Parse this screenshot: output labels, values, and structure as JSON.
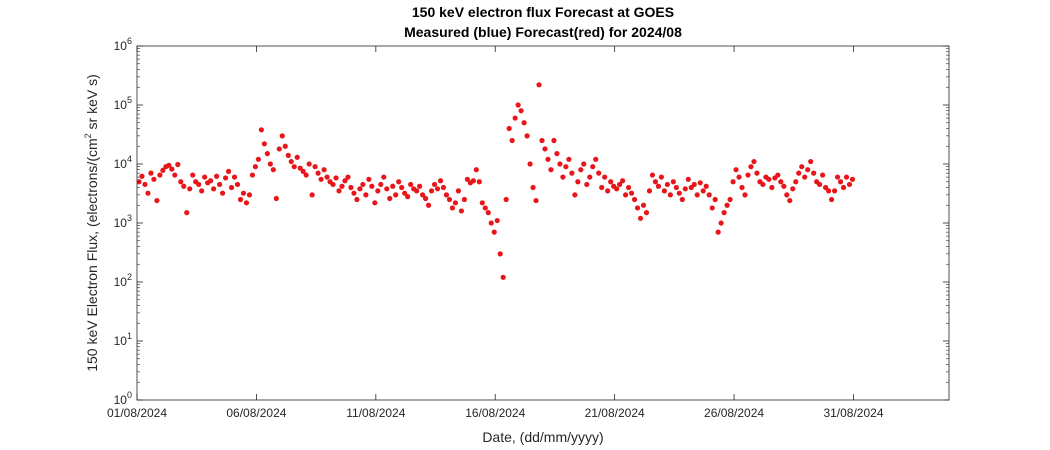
{
  "chart_data": {
    "type": "scatter",
    "title": "150 keV electron flux Forecast at GOES",
    "subtitle": "Measured (blue) Forecast(red) for 2024/08",
    "xlabel": "Date, (dd/mm/yyyy)",
    "ylabel": {
      "before": "150 keV Electron Flux, (electrons/(cm",
      "sup": "2",
      "after": " sr keV s)"
    },
    "y_scale": "log",
    "ylim": [
      1,
      1000000
    ],
    "y_tick_values": [
      1,
      10,
      100,
      1000,
      10000,
      100000,
      1000000
    ],
    "y_tick_labels": [
      {
        "base": "10",
        "exp": "0"
      },
      {
        "base": "10",
        "exp": "1"
      },
      {
        "base": "10",
        "exp": "2"
      },
      {
        "base": "10",
        "exp": "3"
      },
      {
        "base": "10",
        "exp": "4"
      },
      {
        "base": "10",
        "exp": "5"
      },
      {
        "base": "10",
        "exp": "6"
      }
    ],
    "xlim": [
      "2024-08-01",
      "2024-09-04"
    ],
    "x_ticks": [
      {
        "date": "2024-08-01",
        "label": "01/08/2024"
      },
      {
        "date": "2024-08-06",
        "label": "06/08/2024"
      },
      {
        "date": "2024-08-11",
        "label": "11/08/2024"
      },
      {
        "date": "2024-08-16",
        "label": "16/08/2024"
      },
      {
        "date": "2024-08-21",
        "label": "21/08/2024"
      },
      {
        "date": "2024-08-26",
        "label": "26/08/2024"
      },
      {
        "date": "2024-08-31",
        "label": "31/08/2024"
      }
    ],
    "grid": false,
    "series": [
      {
        "color": "#e8161a",
        "points": [
          [
            "2024-08-01 02:00",
            5000
          ],
          [
            "2024-08-01 05:00",
            6200
          ],
          [
            "2024-08-01 08:00",
            4500
          ],
          [
            "2024-08-01 11:00",
            3200
          ],
          [
            "2024-08-01 14:00",
            7000
          ],
          [
            "2024-08-01 17:00",
            5500
          ],
          [
            "2024-08-01 20:00",
            2400
          ],
          [
            "2024-08-01 23:00",
            6500
          ],
          [
            "2024-08-02 02:00",
            7800
          ],
          [
            "2024-08-02 05:00",
            9000
          ],
          [
            "2024-08-02 08:00",
            9500
          ],
          [
            "2024-08-02 11:00",
            8200
          ],
          [
            "2024-08-02 14:00",
            6500
          ],
          [
            "2024-08-02 17:00",
            9800
          ],
          [
            "2024-08-02 20:00",
            5000
          ],
          [
            "2024-08-02 23:00",
            4200
          ],
          [
            "2024-08-03 02:00",
            1500
          ],
          [
            "2024-08-03 05:00",
            3800
          ],
          [
            "2024-08-03 08:00",
            6500
          ],
          [
            "2024-08-03 11:00",
            5000
          ],
          [
            "2024-08-03 14:00",
            4500
          ],
          [
            "2024-08-03 17:00",
            3500
          ],
          [
            "2024-08-03 20:00",
            6000
          ],
          [
            "2024-08-03 23:00",
            4800
          ],
          [
            "2024-08-04 02:00",
            5200
          ],
          [
            "2024-08-04 05:00",
            3800
          ],
          [
            "2024-08-04 08:00",
            6200
          ],
          [
            "2024-08-04 11:00",
            4500
          ],
          [
            "2024-08-04 14:00",
            3200
          ],
          [
            "2024-08-04 17:00",
            5800
          ],
          [
            "2024-08-04 20:00",
            7500
          ],
          [
            "2024-08-04 23:00",
            4000
          ],
          [
            "2024-08-05 02:00",
            6000
          ],
          [
            "2024-08-05 05:00",
            4500
          ],
          [
            "2024-08-05 08:00",
            2500
          ],
          [
            "2024-08-05 11:00",
            3200
          ],
          [
            "2024-08-05 14:00",
            2200
          ],
          [
            "2024-08-05 17:00",
            3000
          ],
          [
            "2024-08-05 20:00",
            6500
          ],
          [
            "2024-08-05 23:00",
            9000
          ],
          [
            "2024-08-06 02:00",
            12000
          ],
          [
            "2024-08-06 05:00",
            38000
          ],
          [
            "2024-08-06 08:00",
            22000
          ],
          [
            "2024-08-06 11:00",
            15000
          ],
          [
            "2024-08-06 14:00",
            10000
          ],
          [
            "2024-08-06 17:00",
            8000
          ],
          [
            "2024-08-06 20:00",
            2600
          ],
          [
            "2024-08-06 23:00",
            18000
          ],
          [
            "2024-08-07 02:00",
            30000
          ],
          [
            "2024-08-07 05:00",
            20000
          ],
          [
            "2024-08-07 08:00",
            14000
          ],
          [
            "2024-08-07 11:00",
            11000
          ],
          [
            "2024-08-07 14:00",
            9000
          ],
          [
            "2024-08-07 17:00",
            13000
          ],
          [
            "2024-08-07 20:00",
            8500
          ],
          [
            "2024-08-07 23:00",
            7500
          ],
          [
            "2024-08-08 02:00",
            6500
          ],
          [
            "2024-08-08 05:00",
            10000
          ],
          [
            "2024-08-08 08:00",
            3000
          ],
          [
            "2024-08-08 11:00",
            9000
          ],
          [
            "2024-08-08 14:00",
            7000
          ],
          [
            "2024-08-08 17:00",
            5500
          ],
          [
            "2024-08-08 20:00",
            8000
          ],
          [
            "2024-08-08 23:00",
            6000
          ],
          [
            "2024-08-09 02:00",
            5000
          ],
          [
            "2024-08-09 05:00",
            4500
          ],
          [
            "2024-08-09 08:00",
            5800
          ],
          [
            "2024-08-09 11:00",
            3500
          ],
          [
            "2024-08-09 14:00",
            4200
          ],
          [
            "2024-08-09 17:00",
            5200
          ],
          [
            "2024-08-09 20:00",
            6000
          ],
          [
            "2024-08-09 23:00",
            4000
          ],
          [
            "2024-08-10 02:00",
            3200
          ],
          [
            "2024-08-10 05:00",
            2500
          ],
          [
            "2024-08-10 08:00",
            3800
          ],
          [
            "2024-08-10 11:00",
            4500
          ],
          [
            "2024-08-10 14:00",
            3000
          ],
          [
            "2024-08-10 17:00",
            5500
          ],
          [
            "2024-08-10 20:00",
            4200
          ],
          [
            "2024-08-10 23:00",
            2200
          ],
          [
            "2024-08-11 02:00",
            3500
          ],
          [
            "2024-08-11 05:00",
            4500
          ],
          [
            "2024-08-11 08:00",
            6000
          ],
          [
            "2024-08-11 11:00",
            3800
          ],
          [
            "2024-08-11 14:00",
            2600
          ],
          [
            "2024-08-11 17:00",
            4200
          ],
          [
            "2024-08-11 20:00",
            3000
          ],
          [
            "2024-08-11 23:00",
            5000
          ],
          [
            "2024-08-12 02:00",
            4000
          ],
          [
            "2024-08-12 05:00",
            3200
          ],
          [
            "2024-08-12 08:00",
            2800
          ],
          [
            "2024-08-12 11:00",
            4500
          ],
          [
            "2024-08-12 14:00",
            3800
          ],
          [
            "2024-08-12 17:00",
            3500
          ],
          [
            "2024-08-12 20:00",
            4200
          ],
          [
            "2024-08-12 23:00",
            3000
          ],
          [
            "2024-08-13 02:00",
            2600
          ],
          [
            "2024-08-13 05:00",
            2000
          ],
          [
            "2024-08-13 08:00",
            3500
          ],
          [
            "2024-08-13 11:00",
            4500
          ],
          [
            "2024-08-13 14:00",
            3800
          ],
          [
            "2024-08-13 17:00",
            5200
          ],
          [
            "2024-08-13 20:00",
            4000
          ],
          [
            "2024-08-13 23:00",
            3000
          ],
          [
            "2024-08-14 02:00",
            2500
          ],
          [
            "2024-08-14 05:00",
            1800
          ],
          [
            "2024-08-14 08:00",
            2200
          ],
          [
            "2024-08-14 11:00",
            3500
          ],
          [
            "2024-08-14 14:00",
            1600
          ],
          [
            "2024-08-14 17:00",
            2500
          ],
          [
            "2024-08-14 20:00",
            5500
          ],
          [
            "2024-08-14 23:00",
            4800
          ],
          [
            "2024-08-15 02:00",
            5200
          ],
          [
            "2024-08-15 05:00",
            8000
          ],
          [
            "2024-08-15 08:00",
            5000
          ],
          [
            "2024-08-15 11:00",
            2200
          ],
          [
            "2024-08-15 14:00",
            1800
          ],
          [
            "2024-08-15 17:00",
            1500
          ],
          [
            "2024-08-15 20:00",
            1000
          ],
          [
            "2024-08-15 23:00",
            700
          ],
          [
            "2024-08-16 02:00",
            1100
          ],
          [
            "2024-08-16 05:00",
            300
          ],
          [
            "2024-08-16 08:00",
            120
          ],
          [
            "2024-08-16 11:00",
            2500
          ],
          [
            "2024-08-16 14:00",
            40000
          ],
          [
            "2024-08-16 17:00",
            25000
          ],
          [
            "2024-08-16 20:00",
            60000
          ],
          [
            "2024-08-16 23:00",
            100000
          ],
          [
            "2024-08-17 02:00",
            80000
          ],
          [
            "2024-08-17 05:00",
            50000
          ],
          [
            "2024-08-17 08:00",
            30000
          ],
          [
            "2024-08-17 11:00",
            10000
          ],
          [
            "2024-08-17 14:00",
            4000
          ],
          [
            "2024-08-17 17:00",
            2400
          ],
          [
            "2024-08-17 20:00",
            220000
          ],
          [
            "2024-08-17 23:00",
            25000
          ],
          [
            "2024-08-18 02:00",
            18000
          ],
          [
            "2024-08-18 05:00",
            12000
          ],
          [
            "2024-08-18 08:00",
            8000
          ],
          [
            "2024-08-18 11:00",
            25000
          ],
          [
            "2024-08-18 14:00",
            15000
          ],
          [
            "2024-08-18 17:00",
            10000
          ],
          [
            "2024-08-18 20:00",
            6000
          ],
          [
            "2024-08-18 23:00",
            9000
          ],
          [
            "2024-08-19 02:00",
            12000
          ],
          [
            "2024-08-19 05:00",
            7000
          ],
          [
            "2024-08-19 08:00",
            3000
          ],
          [
            "2024-08-19 11:00",
            5000
          ],
          [
            "2024-08-19 14:00",
            8000
          ],
          [
            "2024-08-19 17:00",
            10000
          ],
          [
            "2024-08-19 20:00",
            4500
          ],
          [
            "2024-08-19 23:00",
            6000
          ],
          [
            "2024-08-20 02:00",
            9000
          ],
          [
            "2024-08-20 05:00",
            12000
          ],
          [
            "2024-08-20 08:00",
            7000
          ],
          [
            "2024-08-20 11:00",
            4000
          ],
          [
            "2024-08-20 14:00",
            6000
          ],
          [
            "2024-08-20 17:00",
            3500
          ],
          [
            "2024-08-20 20:00",
            5000
          ],
          [
            "2024-08-20 23:00",
            4200
          ],
          [
            "2024-08-21 02:00",
            3800
          ],
          [
            "2024-08-21 05:00",
            4500
          ],
          [
            "2024-08-21 08:00",
            5200
          ],
          [
            "2024-08-21 11:00",
            3000
          ],
          [
            "2024-08-21 14:00",
            4000
          ],
          [
            "2024-08-21 17:00",
            3200
          ],
          [
            "2024-08-21 20:00",
            2500
          ],
          [
            "2024-08-21 23:00",
            1800
          ],
          [
            "2024-08-22 02:00",
            1200
          ],
          [
            "2024-08-22 05:00",
            2000
          ],
          [
            "2024-08-22 08:00",
            1500
          ],
          [
            "2024-08-22 11:00",
            3500
          ],
          [
            "2024-08-22 14:00",
            6500
          ],
          [
            "2024-08-22 17:00",
            5000
          ],
          [
            "2024-08-22 20:00",
            4200
          ],
          [
            "2024-08-22 23:00",
            6000
          ],
          [
            "2024-08-23 02:00",
            3500
          ],
          [
            "2024-08-23 05:00",
            4500
          ],
          [
            "2024-08-23 08:00",
            3000
          ],
          [
            "2024-08-23 11:00",
            5000
          ],
          [
            "2024-08-23 14:00",
            4000
          ],
          [
            "2024-08-23 17:00",
            3200
          ],
          [
            "2024-08-23 20:00",
            2500
          ],
          [
            "2024-08-23 23:00",
            3800
          ],
          [
            "2024-08-24 02:00",
            5500
          ],
          [
            "2024-08-24 05:00",
            4000
          ],
          [
            "2024-08-24 08:00",
            4500
          ],
          [
            "2024-08-24 11:00",
            3000
          ],
          [
            "2024-08-24 14:00",
            4800
          ],
          [
            "2024-08-24 17:00",
            3500
          ],
          [
            "2024-08-24 20:00",
            4200
          ],
          [
            "2024-08-24 23:00",
            3000
          ],
          [
            "2024-08-25 02:00",
            1800
          ],
          [
            "2024-08-25 05:00",
            2500
          ],
          [
            "2024-08-25 08:00",
            700
          ],
          [
            "2024-08-25 11:00",
            1000
          ],
          [
            "2024-08-25 14:00",
            1500
          ],
          [
            "2024-08-25 17:00",
            2000
          ],
          [
            "2024-08-25 20:00",
            2500
          ],
          [
            "2024-08-25 23:00",
            5000
          ],
          [
            "2024-08-26 02:00",
            8000
          ],
          [
            "2024-08-26 05:00",
            6000
          ],
          [
            "2024-08-26 08:00",
            4000
          ],
          [
            "2024-08-26 11:00",
            3000
          ],
          [
            "2024-08-26 14:00",
            6500
          ],
          [
            "2024-08-26 17:00",
            9000
          ],
          [
            "2024-08-26 20:00",
            11000
          ],
          [
            "2024-08-26 23:00",
            7000
          ],
          [
            "2024-08-27 02:00",
            5000
          ],
          [
            "2024-08-27 05:00",
            4500
          ],
          [
            "2024-08-27 08:00",
            6000
          ],
          [
            "2024-08-27 11:00",
            5500
          ],
          [
            "2024-08-27 14:00",
            4000
          ],
          [
            "2024-08-27 17:00",
            5800
          ],
          [
            "2024-08-27 20:00",
            6500
          ],
          [
            "2024-08-27 23:00",
            5000
          ],
          [
            "2024-08-28 02:00",
            4200
          ],
          [
            "2024-08-28 05:00",
            3000
          ],
          [
            "2024-08-28 08:00",
            2400
          ],
          [
            "2024-08-28 11:00",
            3800
          ],
          [
            "2024-08-28 14:00",
            5000
          ],
          [
            "2024-08-28 17:00",
            7000
          ],
          [
            "2024-08-28 20:00",
            9000
          ],
          [
            "2024-08-28 23:00",
            6000
          ],
          [
            "2024-08-29 02:00",
            8000
          ],
          [
            "2024-08-29 05:00",
            11000
          ],
          [
            "2024-08-29 08:00",
            7000
          ],
          [
            "2024-08-29 11:00",
            5000
          ],
          [
            "2024-08-29 14:00",
            4500
          ],
          [
            "2024-08-29 17:00",
            6500
          ],
          [
            "2024-08-29 20:00",
            4000
          ],
          [
            "2024-08-29 23:00",
            3500
          ],
          [
            "2024-08-30 02:00",
            2500
          ],
          [
            "2024-08-30 05:00",
            3500
          ],
          [
            "2024-08-30 08:00",
            6000
          ],
          [
            "2024-08-30 11:00",
            5000
          ],
          [
            "2024-08-30 14:00",
            4000
          ],
          [
            "2024-08-30 17:00",
            6000
          ],
          [
            "2024-08-30 20:00",
            4500
          ],
          [
            "2024-08-30 23:00",
            5500
          ]
        ]
      }
    ]
  }
}
